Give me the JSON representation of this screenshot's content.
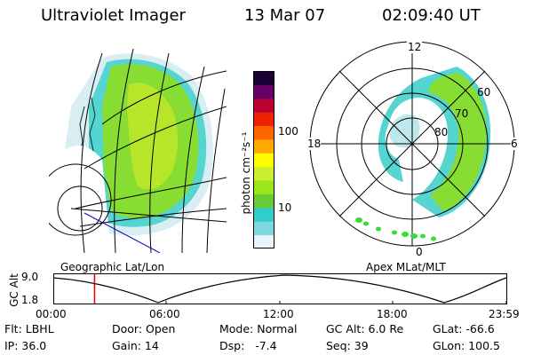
{
  "header": {
    "instrument": "Ultraviolet Imager",
    "date": "13 Mar 07",
    "time": "02:09:40 UT"
  },
  "colorbar": {
    "unit_label": "photon cm⁻²s⁻¹",
    "ticks": [
      "100",
      "10"
    ]
  },
  "panels": {
    "geographic_label": "Geographic Lat/Lon",
    "apex_label": "Apex MLat/MLT"
  },
  "polar": {
    "mlt_labels": {
      "top": "12",
      "left": "18",
      "right": "6",
      "bottom": "0"
    },
    "lat_labels": [
      "60",
      "70",
      "80"
    ]
  },
  "altitude_plot": {
    "axis_label": "GC Alt",
    "y_ticks": [
      "9.0",
      "1.8"
    ],
    "x_ticks": [
      "00:00",
      "06:00",
      "12:00",
      "18:00",
      "23:59"
    ],
    "marker_time": "02:09:40",
    "marker_color": "#d80000"
  },
  "footer": {
    "row1": [
      "Flt: LBHL",
      "Door: Open",
      "Mode: Normal",
      "GC Alt: 6.0 Re",
      "GLat: -66.6"
    ],
    "row2": [
      "IP: 36.0",
      "Gain: 14",
      "Dsp:   -7.4",
      "Seq: 39",
      "GLon: 100.5"
    ]
  },
  "colors": {
    "ramp": [
      "#e8f4f8",
      "#7fd8e0",
      "#33cccc",
      "#66cc33",
      "#99e61a",
      "#ccee33",
      "#ffff00",
      "#ffaa00",
      "#ff6600",
      "#ee2200",
      "#bb0033",
      "#660066",
      "#1a0033"
    ]
  }
}
